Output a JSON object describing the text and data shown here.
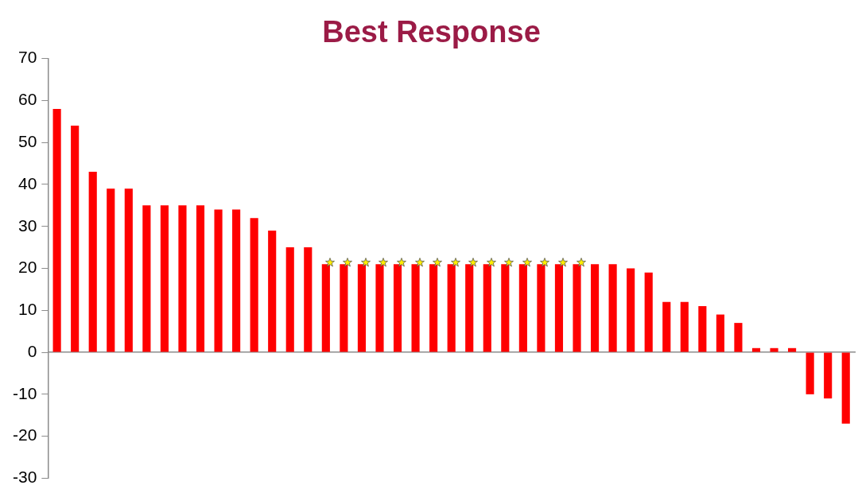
{
  "chart_data": {
    "type": "bar",
    "title": "Best Response",
    "categories": [
      null,
      null,
      null,
      null,
      null,
      null,
      null,
      null,
      null,
      null,
      null,
      null,
      null,
      null,
      null,
      null,
      null,
      null,
      null,
      null,
      null,
      null,
      null,
      null,
      null,
      null,
      null,
      null,
      null,
      null,
      null,
      null,
      null,
      null,
      null,
      null,
      null,
      null,
      null,
      null,
      null,
      null,
      null,
      null,
      null
    ],
    "values": [
      58,
      54,
      43,
      39,
      39,
      35,
      35,
      35,
      35,
      34,
      34,
      32,
      29,
      25,
      25,
      21,
      21,
      21,
      21,
      21,
      21,
      21,
      21,
      21,
      21,
      21,
      21,
      21,
      21,
      21,
      21,
      21,
      20,
      19,
      12,
      12,
      11,
      9,
      7,
      1,
      1,
      1,
      -10,
      -11,
      -17
    ],
    "color": "#ff0000",
    "ylim": [
      -30,
      70
    ],
    "yticks": [
      -30,
      -20,
      -10,
      0,
      10,
      20,
      30,
      40,
      50,
      60,
      70
    ],
    "legend": false,
    "tick_labels": "y"
  }
}
